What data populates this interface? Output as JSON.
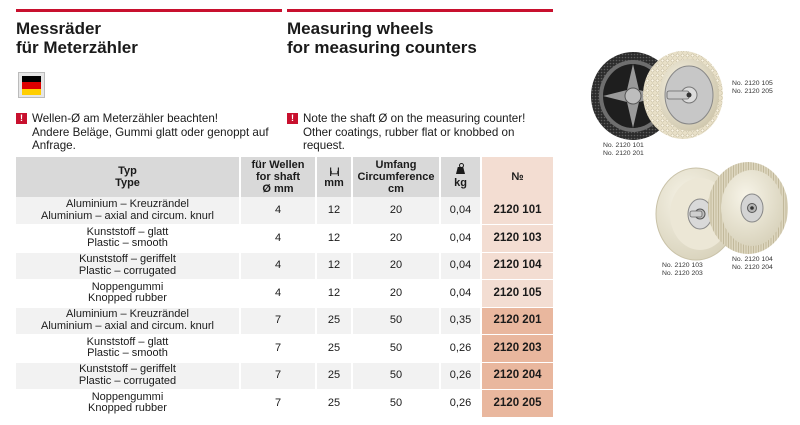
{
  "header": {
    "title_de": [
      "Messräder",
      "für Meterzähler"
    ],
    "title_en": [
      "Measuring wheels",
      "for measuring counters"
    ]
  },
  "flag": {
    "country": "Germany",
    "colors": [
      "#000000",
      "#dd0000",
      "#ffce00"
    ]
  },
  "notes": {
    "icon": "exclamation-icon",
    "de": [
      "Wellen-Ø am Meterzähler beachten!",
      "Andere Beläge, Gummi glatt oder genoppt auf",
      "Anfrage."
    ],
    "en": [
      "Note the shaft Ø on the measuring counter!",
      "Other coatings, rubber flat or knobbed on request."
    ]
  },
  "table": {
    "headers": {
      "type": [
        "Typ",
        "Type"
      ],
      "shaft": [
        "für Wellen",
        "for shaft",
        "Ø mm"
      ],
      "width": "mm",
      "width_icon": "width-icon",
      "circumference": [
        "Umfang",
        "Circumference",
        "cm"
      ],
      "weight": "kg",
      "weight_icon": "weight-icon",
      "article": "№"
    },
    "rows": [
      {
        "type_de": "Aluminium – Kreuzrändel",
        "type_en": "Aluminium – axial and circum. knurl",
        "shaft": "4",
        "width": "12",
        "circumference": "20",
        "weight": "0,04",
        "article": "2120 101"
      },
      {
        "type_de": "Kunststoff – glatt",
        "type_en": "Plastic – smooth",
        "shaft": "4",
        "width": "12",
        "circumference": "20",
        "weight": "0,04",
        "article": "2120 103"
      },
      {
        "type_de": "Kunststoff – geriffelt",
        "type_en": "Plastic – corrugated",
        "shaft": "4",
        "width": "12",
        "circumference": "20",
        "weight": "0,04",
        "article": "2120 104"
      },
      {
        "type_de": "Noppengummi",
        "type_en": "Knopped rubber",
        "shaft": "4",
        "width": "12",
        "circumference": "20",
        "weight": "0,04",
        "article": "2120 105"
      },
      {
        "type_de": "Aluminium – Kreuzrändel",
        "type_en": "Aluminium – axial and circum. knurl",
        "shaft": "7",
        "width": "25",
        "circumference": "50",
        "weight": "0,35",
        "article": "2120 201"
      },
      {
        "type_de": "Kunststoff – glatt",
        "type_en": "Plastic – smooth",
        "shaft": "7",
        "width": "25",
        "circumference": "50",
        "weight": "0,26",
        "article": "2120 203"
      },
      {
        "type_de": "Kunststoff – geriffelt",
        "type_en": "Plastic – corrugated",
        "shaft": "7",
        "width": "25",
        "circumference": "50",
        "weight": "0,26",
        "article": "2120 204"
      },
      {
        "type_de": "Noppengummi",
        "type_en": "Knopped rubber",
        "shaft": "7",
        "width": "25",
        "circumference": "50",
        "weight": "0,26",
        "article": "2120 205"
      }
    ]
  },
  "photos": {
    "top_left_caption": [
      "No. 2120 101",
      "No. 2120 201"
    ],
    "top_right_caption": [
      "No. 2120 105",
      "No. 2120 205"
    ],
    "bottom_left_caption": [
      "No. 2120 103",
      "No. 2120 203"
    ],
    "bottom_right_caption": [
      "No. 2120 104",
      "No. 2120 204"
    ]
  }
}
